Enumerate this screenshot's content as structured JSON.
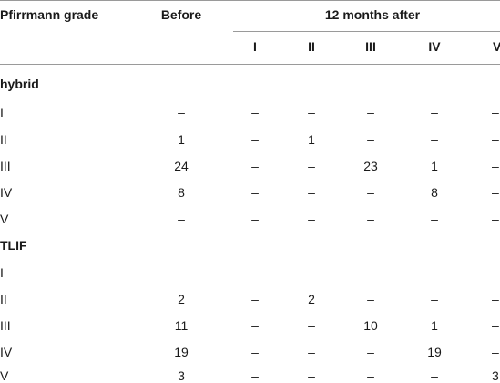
{
  "header": {
    "grade": "Pfirrmann grade",
    "before": "Before",
    "after": "12 months after",
    "sub": [
      "I",
      "II",
      "III",
      "IV",
      "V"
    ]
  },
  "groups": [
    {
      "name": "hybrid",
      "rows": [
        {
          "grade": "I",
          "before": "–",
          "after": [
            "–",
            "–",
            "–",
            "–",
            "–"
          ]
        },
        {
          "grade": "II",
          "before": "1",
          "after": [
            "–",
            "1",
            "–",
            "–",
            "–"
          ]
        },
        {
          "grade": "III",
          "before": "24",
          "after": [
            "–",
            "–",
            "23",
            "1",
            "–"
          ]
        },
        {
          "grade": "IV",
          "before": "8",
          "after": [
            "–",
            "–",
            "–",
            "8",
            "–"
          ]
        },
        {
          "grade": "V",
          "before": "–",
          "after": [
            "–",
            "–",
            "–",
            "–",
            "–"
          ]
        }
      ]
    },
    {
      "name": "TLIF",
      "rows": [
        {
          "grade": "I",
          "before": "–",
          "after": [
            "–",
            "–",
            "–",
            "–",
            "–"
          ]
        },
        {
          "grade": "II",
          "before": "2",
          "after": [
            "–",
            "2",
            "–",
            "–",
            "–"
          ]
        },
        {
          "grade": "III",
          "before": "11",
          "after": [
            "–",
            "–",
            "10",
            "1",
            "–"
          ]
        },
        {
          "grade": "IV",
          "before": "19",
          "after": [
            "–",
            "–",
            "–",
            "19",
            "–"
          ]
        },
        {
          "grade": "V",
          "before": "3",
          "after": [
            "–",
            "–",
            "–",
            "–",
            "3"
          ]
        }
      ]
    }
  ]
}
